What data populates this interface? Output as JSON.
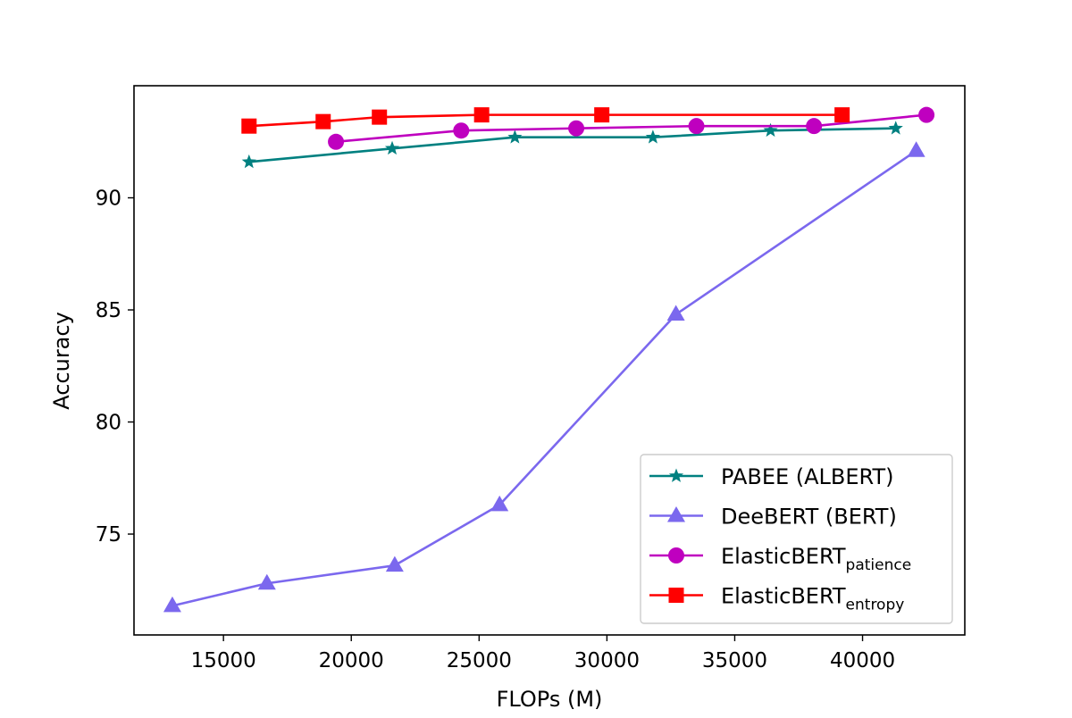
{
  "chart_data": {
    "type": "line",
    "title": "",
    "xlabel": "FLOPs (M)",
    "ylabel": "Accuracy",
    "xlim": [
      11500,
      44000
    ],
    "ylim": [
      70.5,
      95.0
    ],
    "xticks": [
      15000,
      20000,
      25000,
      30000,
      35000,
      40000
    ],
    "yticks": [
      75,
      80,
      85,
      90
    ],
    "grid": false,
    "legend_position": "lower-right",
    "series": [
      {
        "name": "PABEE (ALBERT)",
        "name_main": "PABEE (ALBERT)",
        "name_sub": "",
        "color": "#008080",
        "marker": "star",
        "x": [
          16000,
          21600,
          26400,
          31800,
          36400,
          41300
        ],
        "y": [
          91.6,
          92.2,
          92.7,
          92.7,
          93.0,
          93.1
        ]
      },
      {
        "name": "DeeBERT (BERT)",
        "name_main": "DeeBERT (BERT)",
        "name_sub": "",
        "color": "#7b68ee",
        "marker": "triangle",
        "x": [
          13000,
          16700,
          21700,
          25800,
          32700,
          42100
        ],
        "y": [
          71.8,
          72.8,
          73.6,
          76.3,
          84.8,
          92.1
        ]
      },
      {
        "name": "ElasticBERTpatience",
        "name_main": "ElasticBERT",
        "name_sub": "patience",
        "color": "#bf00bf",
        "marker": "circle",
        "x": [
          19400,
          24300,
          28800,
          33500,
          38100,
          42500
        ],
        "y": [
          92.5,
          93.0,
          93.1,
          93.2,
          93.2,
          93.7
        ]
      },
      {
        "name": "ElasticBERTentropy",
        "name_main": "ElasticBERT",
        "name_sub": "entropy",
        "color": "#ff0000",
        "marker": "square",
        "x": [
          16000,
          18900,
          21100,
          25100,
          29800,
          39200
        ],
        "y": [
          93.2,
          93.4,
          93.6,
          93.7,
          93.7,
          93.7
        ]
      }
    ]
  }
}
